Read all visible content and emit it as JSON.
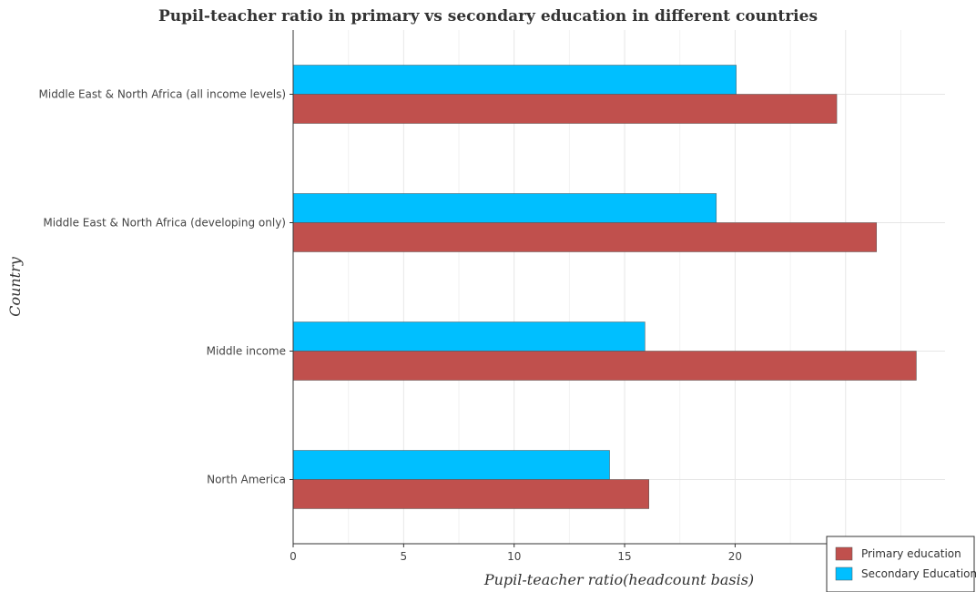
{
  "chart_data": {
    "type": "bar",
    "orientation": "horizontal",
    "title": "Pupil-teacher ratio in primary vs secondary education in different countries",
    "xlabel": "Pupil-teacher ratio(headcount basis)",
    "ylabel": "Country",
    "categories": [
      "Middle East & North Africa (all income levels)",
      "Middle East & North Africa (developing only)",
      "Middle income",
      "North America"
    ],
    "series": [
      {
        "name": "Primary education",
        "color": "#c0504d",
        "values": [
          24.6,
          26.4,
          28.2,
          16.1
        ]
      },
      {
        "name": "Secondary Education",
        "color": "#00bfff",
        "values": [
          20.05,
          19.15,
          15.92,
          14.32
        ]
      }
    ],
    "xlim": [
      0,
      29.5
    ],
    "xticks": [
      0,
      5,
      10,
      15,
      20,
      25
    ],
    "grid": true,
    "legend_position": "bottom-right"
  }
}
